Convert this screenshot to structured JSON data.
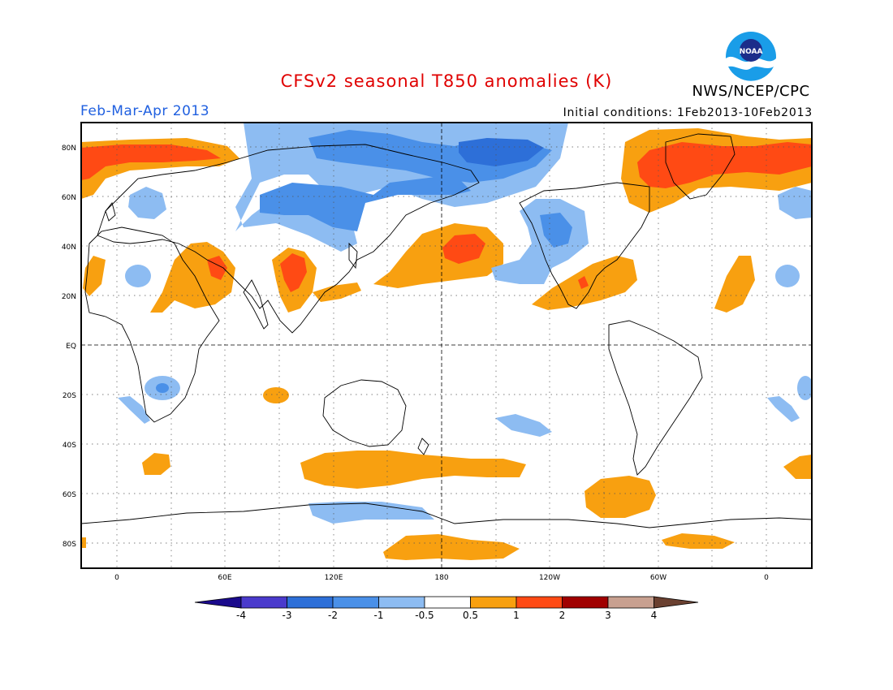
{
  "header": {
    "title": "CFSv2 seasonal T850 anomalies (K)",
    "agency": "NWS/NCEP/CPC",
    "period": "Feb-Mar-Apr 2013",
    "initial_conditions": "Initial conditions: 1Feb2013-10Feb2013",
    "logo_text": "NOAA"
  },
  "colors": {
    "title": "#e00000",
    "period": "#2060e0"
  },
  "map": {
    "lat_labels": [
      "80N",
      "60N",
      "40N",
      "20N",
      "EQ",
      "20S",
      "40S",
      "60S",
      "80S"
    ],
    "lon_labels": [
      "0",
      "60E",
      "120E",
      "180",
      "120W",
      "60W",
      "0"
    ]
  },
  "legend": {
    "labels": [
      "-4",
      "-3",
      "-2",
      "-1",
      "-0.5",
      "0.5",
      "1",
      "2",
      "3",
      "4"
    ],
    "colors": [
      "#1a0a8c",
      "#4a3acc",
      "#2d6fd8",
      "#4a90e8",
      "#8dbcf2",
      "#ffffff",
      "#f8a010",
      "#ff4a14",
      "#a00000",
      "#c8a090",
      "#6a4030"
    ]
  }
}
